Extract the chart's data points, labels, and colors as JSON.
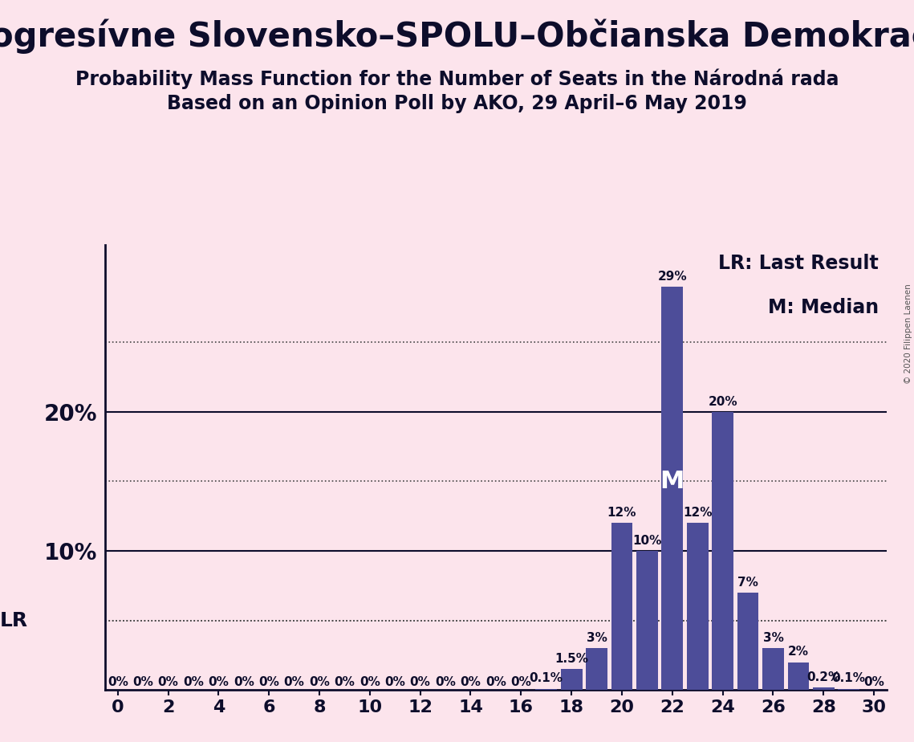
{
  "title": "Progresívne Slovensko–SPOLU–Občianska Demokracia",
  "subtitle1": "Probability Mass Function for the Number of Seats in the Národná rada",
  "subtitle2": "Based on an Opinion Poll by AKO, 29 April–6 May 2019",
  "copyright": "© 2020 Filippen Laenen",
  "legend_lr": "LR: Last Result",
  "legend_m": "M: Median",
  "lr_label": "LR",
  "m_label": "M",
  "background_color": "#fce4ec",
  "bar_color": "#4d4d99",
  "lr_value": 5.0,
  "median_value": 22,
  "seats": [
    0,
    1,
    2,
    3,
    4,
    5,
    6,
    7,
    8,
    9,
    10,
    11,
    12,
    13,
    14,
    15,
    16,
    17,
    18,
    19,
    20,
    21,
    22,
    23,
    24,
    25,
    26,
    27,
    28,
    29,
    30
  ],
  "probabilities": [
    0.0,
    0.0,
    0.0,
    0.0,
    0.0,
    0.0,
    0.0,
    0.0,
    0.0,
    0.0,
    0.0,
    0.0,
    0.0,
    0.0,
    0.0,
    0.0,
    0.0,
    0.1,
    1.5,
    3.0,
    12.0,
    10.0,
    29.0,
    12.0,
    20.0,
    7.0,
    3.0,
    2.0,
    0.2,
    0.1,
    0.0
  ],
  "bar_labels": [
    "0%",
    "0%",
    "0%",
    "0%",
    "0%",
    "0%",
    "0%",
    "0%",
    "0%",
    "0%",
    "0%",
    "0%",
    "0%",
    "0%",
    "0%",
    "0%",
    "0%",
    "0.1%",
    "1.5%",
    "3%",
    "12%",
    "10%",
    "29%",
    "12%",
    "20%",
    "7%",
    "3%",
    "2%",
    "0.2%",
    "0.1%",
    "0%"
  ],
  "xlim": [
    -0.5,
    30.5
  ],
  "ylim": [
    0,
    32
  ],
  "ytick_positions": [
    10,
    20
  ],
  "ytick_labels": [
    "10%",
    "20%"
  ],
  "xticks": [
    0,
    2,
    4,
    6,
    8,
    10,
    12,
    14,
    16,
    18,
    20,
    22,
    24,
    26,
    28,
    30
  ],
  "grid_y_values": [
    5,
    10,
    15,
    20,
    25
  ],
  "title_fontsize": 30,
  "subtitle_fontsize": 17,
  "bar_label_fontsize": 11,
  "legend_fontsize": 17,
  "lr_line_y": 5.0,
  "m_x": 22,
  "m_y": 15
}
